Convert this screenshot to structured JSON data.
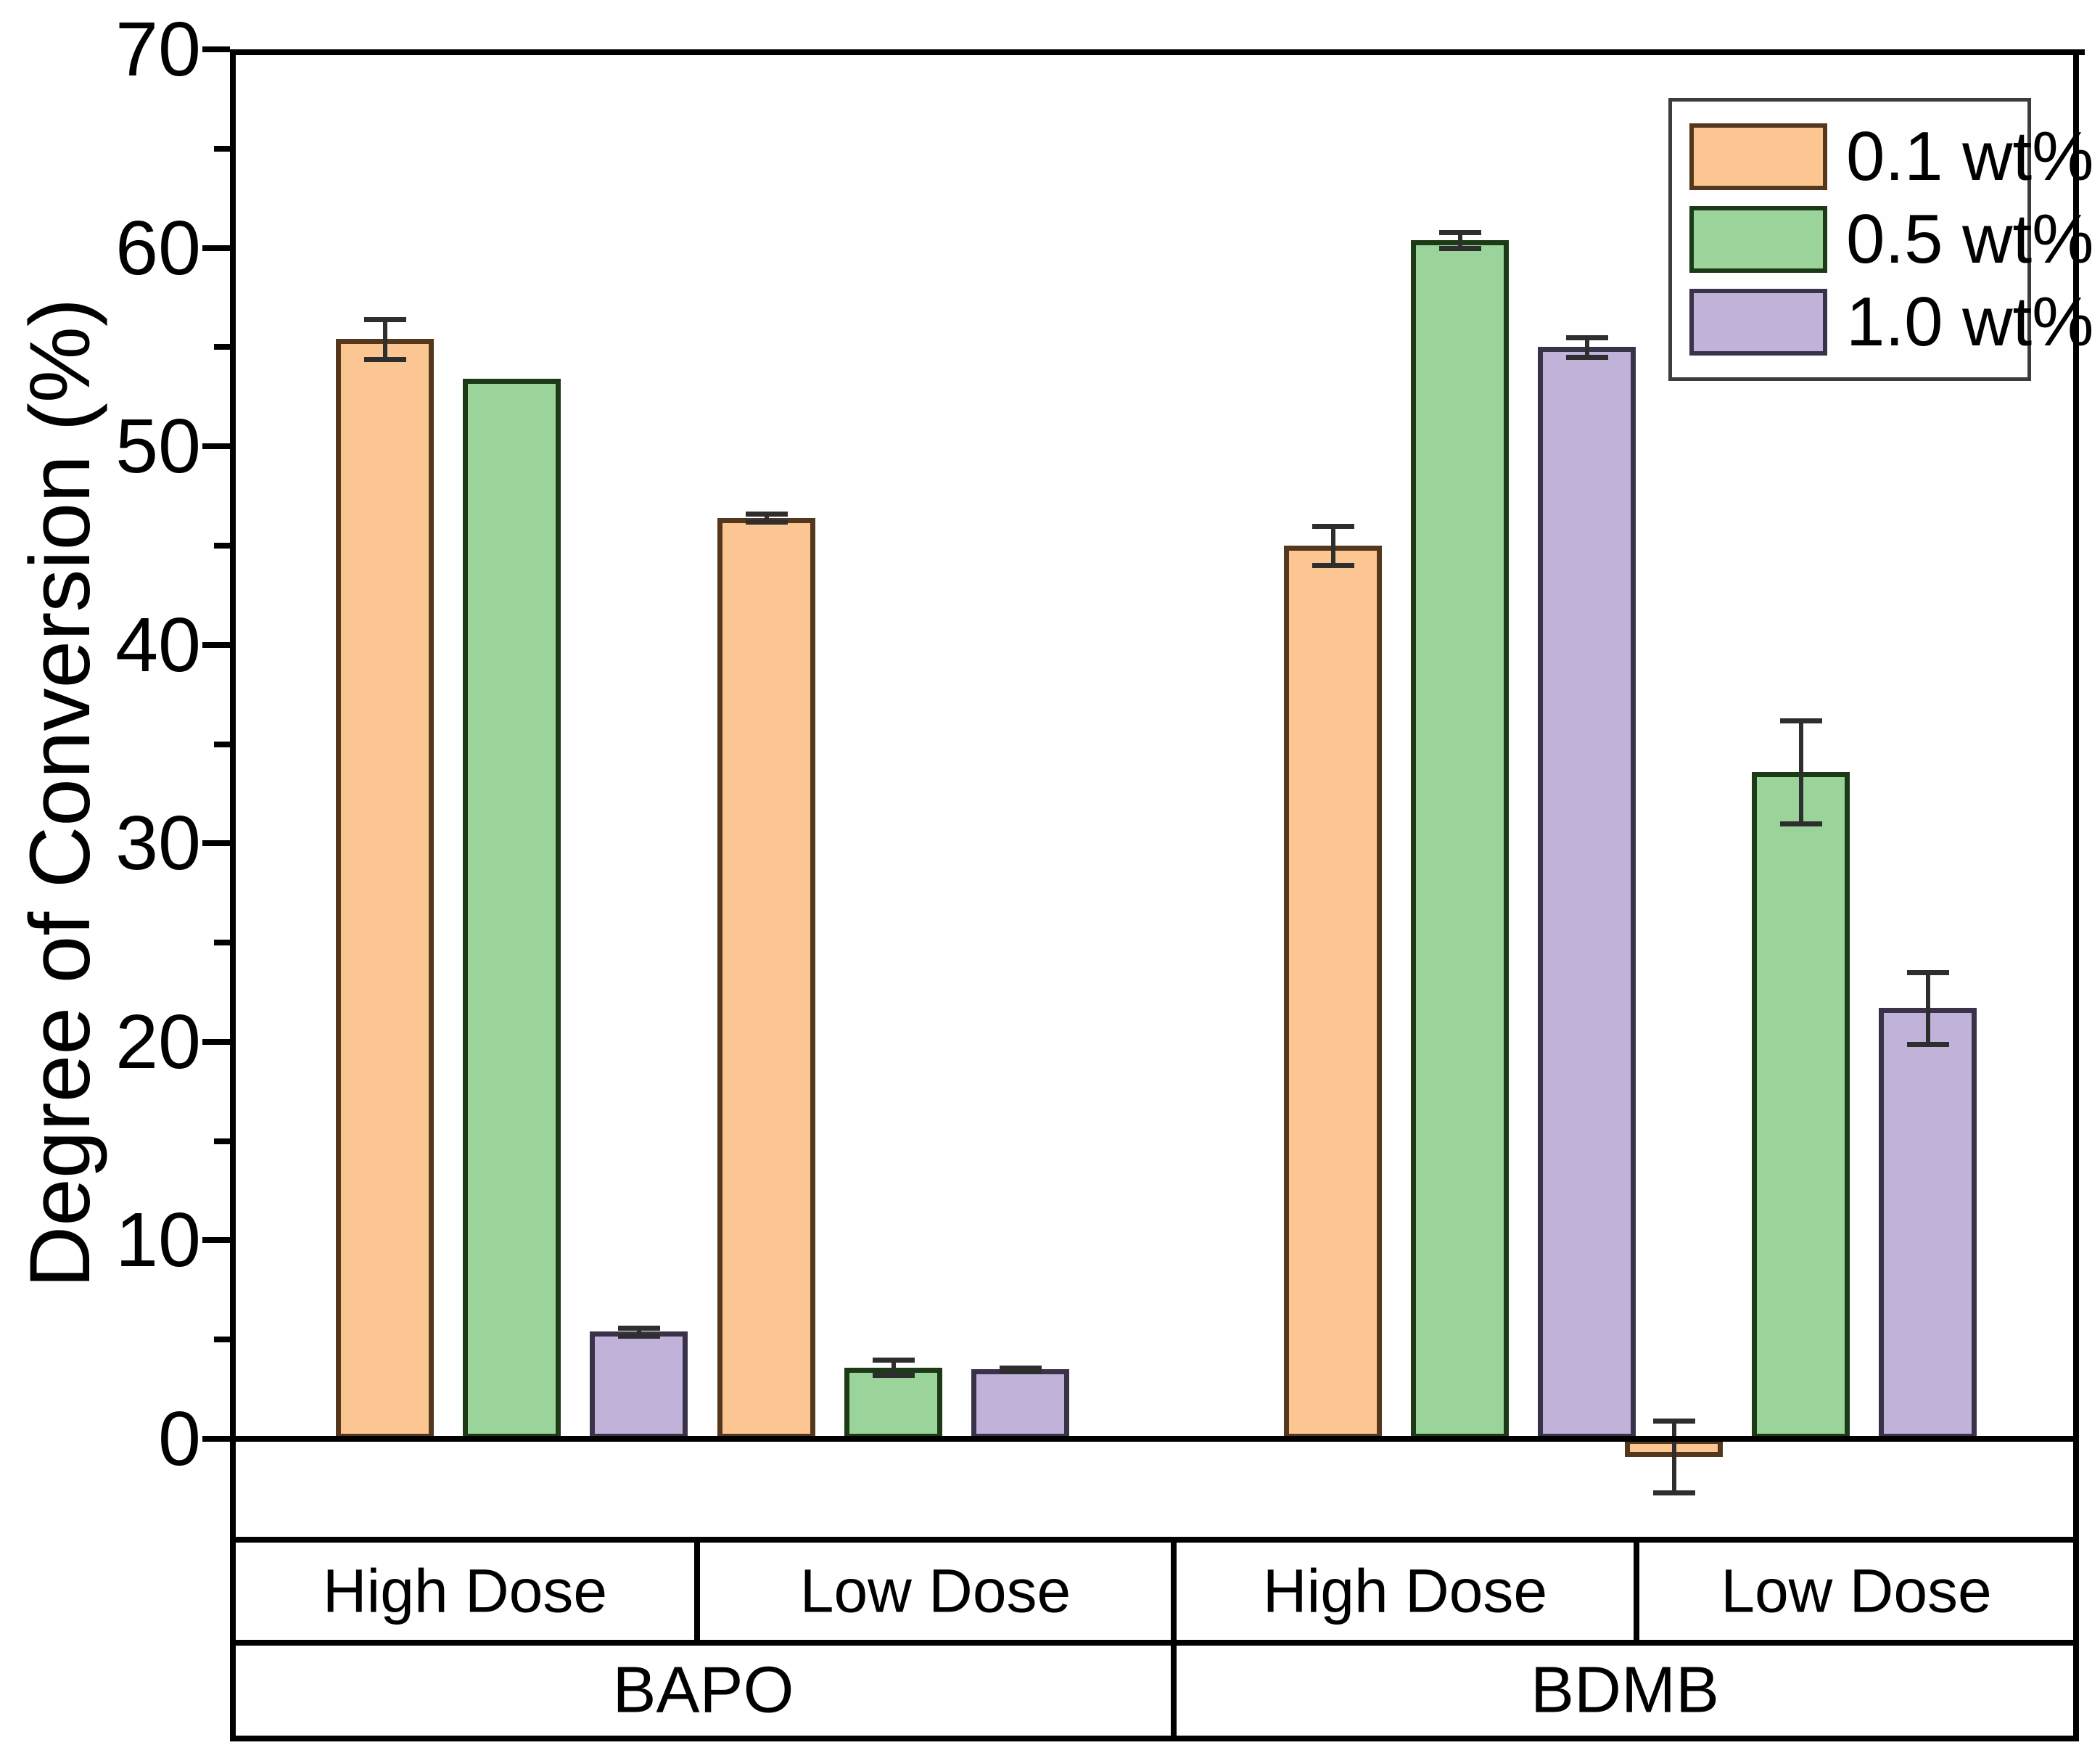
{
  "figure": {
    "background_color": "#ffffff",
    "axis_color": "#000000"
  },
  "chart_data": {
    "type": "bar",
    "title": "",
    "xlabel": "",
    "ylabel": "Degree of Conversion (%)",
    "ylim": [
      -5,
      70
    ],
    "y_major_ticks": [
      0,
      10,
      20,
      30,
      40,
      50,
      60,
      70
    ],
    "y_minor_tick_step": 5,
    "grid": false,
    "zero_line": true,
    "legend_position": "top-right",
    "categories": [
      "BAPO High Dose",
      "BAPO Low Dose",
      "BDMB High Dose",
      "BDMB Low Dose"
    ],
    "group_row_labels": [
      "High Dose",
      "Low Dose",
      "High Dose",
      "Low Dose"
    ],
    "supergroup_row_labels": [
      "BAPO",
      "BDMB"
    ],
    "series": [
      {
        "name": "0.1 wt%",
        "fill": "#FBC692",
        "edge": "#54371D",
        "values": [
          55.4,
          46.4,
          45.0,
          -0.9
        ],
        "errors": [
          1.0,
          0.2,
          1.0,
          1.8
        ]
      },
      {
        "name": "0.5 wt%",
        "fill": "#9BD49A",
        "edge": "#1C3A16",
        "values": [
          53.4,
          3.6,
          60.4,
          33.6
        ],
        "errors": [
          0,
          0.4,
          0.4,
          2.6
        ]
      },
      {
        "name": "1.0 wt%",
        "fill": "#C1B2D9",
        "edge": "#3A3248",
        "values": [
          5.4,
          3.5,
          55.0,
          21.7
        ],
        "errors": [
          0.2,
          0.1,
          0.5,
          1.8
        ]
      }
    ],
    "error_bar_color": "#2E2E2E"
  }
}
